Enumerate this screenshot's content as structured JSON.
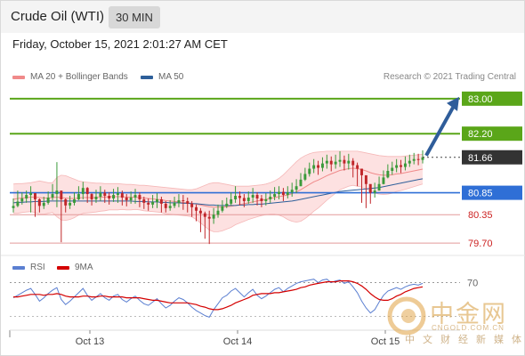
{
  "header": {
    "title": "Crude Oil (WTI)",
    "interval": "30 MIN"
  },
  "timestamp": "Friday, October 15, 2021 2:01:27 AM CET",
  "legend": {
    "ma20_label": "MA 20 + Bollinger Bands",
    "ma20_color": "#f08a8a",
    "ma50_label": "MA 50",
    "ma50_color": "#2e5f9a",
    "credit": "Research © 2021 Trading Central"
  },
  "rsi_legend": {
    "rsi_label": "RSI",
    "rsi_color": "#5b7fd1",
    "ma_label": "9MA",
    "ma_color": "#d40000"
  },
  "watermark": {
    "cn": "中金网",
    "en": "CNGOLD.COM.CN",
    "sub": "中文财经新媒体"
  },
  "chart_data": [
    {
      "type": "candlestick",
      "x_tick_labels": [
        "Oct 13",
        "Oct 14",
        "Oct 15"
      ],
      "ylim": [
        79.5,
        83.2
      ],
      "current_price": 81.66,
      "current_price_color": "#333333",
      "levels": [
        {
          "value": 83.0,
          "label": "83.00",
          "kind": "target",
          "color": "#5aa619"
        },
        {
          "value": 82.2,
          "label": "82.20",
          "kind": "resistance",
          "color": "#5aa619"
        },
        {
          "value": 80.85,
          "label": "80.85",
          "kind": "pivot",
          "color": "#2f6fd6"
        },
        {
          "value": 80.35,
          "label": "80.35",
          "kind": "support",
          "color": "#cc2222"
        },
        {
          "value": 79.7,
          "label": "79.70",
          "kind": "support",
          "color": "#cc2222"
        }
      ],
      "candle_up_color": "#3a9a3a",
      "candle_down_color": "#c0262a",
      "close": [
        80.55,
        80.65,
        80.72,
        80.8,
        80.84,
        80.7,
        80.55,
        80.62,
        80.74,
        80.82,
        80.9,
        80.7,
        80.56,
        80.62,
        80.7,
        80.82,
        80.96,
        80.82,
        80.7,
        80.76,
        80.85,
        80.78,
        80.72,
        80.8,
        80.84,
        80.74,
        80.68,
        80.74,
        80.8,
        80.7,
        80.62,
        80.58,
        80.64,
        80.7,
        80.6,
        80.5,
        80.55,
        80.62,
        80.68,
        80.66,
        80.6,
        80.52,
        80.44,
        80.38,
        80.3,
        80.26,
        80.35,
        80.44,
        80.54,
        80.6,
        80.7,
        80.78,
        80.73,
        80.66,
        80.74,
        80.8,
        80.72,
        80.66,
        80.7,
        80.76,
        80.82,
        80.87,
        80.8,
        80.86,
        80.92,
        81.0,
        81.15,
        81.28,
        81.4,
        81.48,
        81.42,
        81.52,
        81.58,
        81.5,
        81.56,
        81.6,
        81.52,
        81.58,
        81.48,
        81.4,
        81.25,
        81.05,
        80.85,
        80.9,
        81.05,
        81.2,
        81.35,
        81.42,
        81.48,
        81.44,
        81.52,
        81.58,
        81.62,
        81.6,
        81.66
      ],
      "low": [
        80.4,
        80.52,
        80.58,
        80.62,
        80.4,
        80.3,
        80.4,
        80.48,
        80.58,
        80.68,
        80.52,
        79.72,
        80.4,
        80.48,
        80.56,
        80.68,
        80.7,
        80.62,
        80.56,
        80.62,
        80.66,
        80.62,
        80.58,
        80.64,
        80.62,
        80.56,
        80.54,
        80.6,
        80.6,
        80.52,
        80.48,
        80.44,
        80.5,
        80.5,
        80.4,
        80.4,
        80.44,
        80.5,
        80.52,
        80.46,
        80.4,
        80.3,
        80.2,
        79.95,
        79.8,
        79.68,
        80.14,
        80.28,
        80.4,
        80.5,
        80.56,
        80.62,
        80.56,
        80.52,
        80.6,
        80.62,
        80.56,
        80.52,
        80.56,
        80.62,
        80.68,
        80.7,
        80.66,
        80.72,
        80.76,
        80.84,
        81.0,
        81.12,
        81.22,
        81.3,
        81.26,
        81.34,
        81.4,
        81.34,
        81.4,
        81.44,
        81.36,
        81.38,
        81.2,
        81.0,
        80.62,
        80.5,
        80.6,
        80.74,
        80.9,
        81.04,
        81.18,
        81.26,
        81.32,
        81.3,
        81.36,
        81.44,
        81.5,
        81.48,
        81.52
      ],
      "high": [
        80.72,
        80.9,
        80.86,
        80.9,
        81.0,
        80.84,
        80.72,
        80.76,
        80.88,
        81.05,
        81.55,
        80.86,
        80.72,
        80.78,
        80.86,
        81.0,
        81.1,
        80.98,
        80.84,
        80.92,
        81.0,
        80.92,
        80.86,
        80.94,
        80.98,
        80.9,
        80.82,
        80.88,
        80.94,
        80.86,
        80.76,
        80.72,
        80.8,
        80.84,
        80.76,
        80.66,
        80.68,
        80.76,
        80.82,
        80.8,
        80.74,
        80.66,
        80.58,
        80.5,
        80.42,
        80.44,
        80.5,
        80.58,
        80.68,
        80.74,
        80.86,
        81.0,
        80.88,
        80.82,
        80.88,
        80.96,
        80.86,
        80.8,
        80.84,
        80.9,
        80.98,
        81.0,
        80.96,
        81.0,
        81.08,
        81.16,
        81.3,
        81.42,
        81.54,
        81.62,
        81.58,
        81.66,
        81.72,
        81.68,
        81.72,
        81.8,
        81.7,
        81.74,
        81.64,
        81.54,
        81.4,
        81.2,
        81.0,
        81.08,
        81.22,
        81.36,
        81.5,
        81.56,
        81.62,
        81.6,
        81.68,
        81.72,
        81.76,
        81.74,
        81.82
      ],
      "ma20": [
        80.7,
        80.72,
        80.73,
        80.74,
        80.75,
        80.75,
        80.74,
        80.73,
        80.73,
        80.74,
        80.75,
        80.74,
        80.73,
        80.72,
        80.72,
        80.73,
        80.74,
        80.74,
        80.74,
        80.74,
        80.75,
        80.75,
        80.76,
        80.76,
        80.76,
        80.76,
        80.75,
        80.75,
        80.75,
        80.74,
        80.73,
        80.72,
        80.71,
        80.7,
        80.69,
        80.67,
        80.66,
        80.65,
        80.64,
        80.63,
        80.62,
        80.61,
        80.59,
        80.57,
        80.55,
        80.53,
        80.52,
        80.52,
        80.52,
        80.53,
        80.54,
        80.56,
        80.58,
        80.6,
        80.62,
        80.64,
        80.66,
        80.68,
        80.7,
        80.72,
        80.74,
        80.76,
        80.78,
        80.8,
        80.83,
        80.87,
        80.92,
        80.98,
        81.04,
        81.1,
        81.14,
        81.19,
        81.24,
        81.28,
        81.32,
        81.36,
        81.38,
        81.4,
        81.41,
        81.4,
        81.38,
        81.35,
        81.31,
        81.28,
        81.26,
        81.25,
        81.25,
        81.26,
        81.28,
        81.29,
        81.31,
        81.33,
        81.35,
        81.37,
        81.39
      ],
      "bb_upper": [
        81.05,
        81.06,
        81.06,
        81.07,
        81.08,
        81.1,
        81.12,
        81.1,
        81.08,
        81.08,
        81.2,
        81.25,
        81.24,
        81.2,
        81.16,
        81.12,
        81.1,
        81.09,
        81.08,
        81.07,
        81.07,
        81.06,
        81.06,
        81.06,
        81.06,
        81.05,
        81.04,
        81.04,
        81.03,
        81.02,
        81.02,
        81.01,
        81.0,
        80.99,
        80.98,
        80.97,
        80.96,
        80.95,
        80.94,
        80.93,
        80.92,
        80.92,
        80.94,
        80.98,
        81.02,
        81.06,
        81.08,
        81.08,
        81.06,
        81.04,
        81.02,
        81.0,
        81.0,
        81.0,
        81.0,
        81.01,
        81.02,
        81.03,
        81.05,
        81.08,
        81.12,
        81.18,
        81.26,
        81.36,
        81.46,
        81.56,
        81.64,
        81.7,
        81.74,
        81.77,
        81.78,
        81.79,
        81.8,
        81.8,
        81.8,
        81.8,
        81.8,
        81.8,
        81.8,
        81.8,
        81.78,
        81.76,
        81.74,
        81.72,
        81.7,
        81.69,
        81.68,
        81.68,
        81.68,
        81.68,
        81.69,
        81.7,
        81.71,
        81.72,
        81.73
      ],
      "bb_lower": [
        80.38,
        80.38,
        80.4,
        80.41,
        80.42,
        80.4,
        80.36,
        80.36,
        80.38,
        80.4,
        80.3,
        80.23,
        80.22,
        80.24,
        80.28,
        80.34,
        80.38,
        80.39,
        80.4,
        80.41,
        80.43,
        80.44,
        80.46,
        80.46,
        80.46,
        80.47,
        80.46,
        80.46,
        80.47,
        80.46,
        80.44,
        80.43,
        80.42,
        80.41,
        80.4,
        80.37,
        80.36,
        80.35,
        80.34,
        80.33,
        80.32,
        80.3,
        80.24,
        80.16,
        80.08,
        80.0,
        79.96,
        79.96,
        79.98,
        80.02,
        80.06,
        80.12,
        80.16,
        80.2,
        80.24,
        80.27,
        80.3,
        80.33,
        80.35,
        80.36,
        80.36,
        80.34,
        80.3,
        80.24,
        80.2,
        80.18,
        80.2,
        80.26,
        80.34,
        80.43,
        80.5,
        80.59,
        80.68,
        80.76,
        80.84,
        80.92,
        80.96,
        81.0,
        81.02,
        81.0,
        80.98,
        80.94,
        80.88,
        80.84,
        80.82,
        80.81,
        80.82,
        80.84,
        80.88,
        80.9,
        80.93,
        80.96,
        80.99,
        81.02,
        81.05
      ],
      "ma50": [
        80.62,
        80.63,
        80.63,
        80.64,
        80.64,
        80.65,
        80.65,
        80.65,
        80.66,
        80.66,
        80.66,
        80.66,
        80.66,
        80.66,
        80.66,
        80.66,
        80.66,
        80.66,
        80.66,
        80.66,
        80.66,
        80.66,
        80.66,
        80.66,
        80.66,
        80.66,
        80.66,
        80.66,
        80.65,
        80.65,
        80.65,
        80.64,
        80.64,
        80.64,
        80.63,
        80.63,
        80.62,
        80.62,
        80.62,
        80.61,
        80.61,
        80.6,
        80.6,
        80.59,
        80.58,
        80.57,
        80.57,
        80.56,
        80.56,
        80.56,
        80.56,
        80.56,
        80.57,
        80.57,
        80.58,
        80.58,
        80.59,
        80.59,
        80.6,
        80.61,
        80.62,
        80.63,
        80.64,
        80.65,
        80.66,
        80.68,
        80.7,
        80.72,
        80.74,
        80.76,
        80.78,
        80.8,
        80.82,
        80.84,
        80.86,
        80.88,
        80.89,
        80.9,
        80.91,
        80.92,
        80.93,
        80.94,
        80.95,
        80.96,
        80.97,
        80.99,
        81.01,
        81.03,
        81.05,
        81.07,
        81.09,
        81.11,
        81.13,
        81.15,
        81.17
      ],
      "forecast_target": 83.0
    },
    {
      "type": "line",
      "title": "RSI",
      "ylim": [
        20,
        80
      ],
      "levels": [
        {
          "value": 70,
          "label": "70"
        }
      ],
      "series": [
        {
          "name": "RSI",
          "values": [
            52,
            55,
            58,
            61,
            63,
            56,
            48,
            52,
            57,
            61,
            64,
            50,
            44,
            48,
            53,
            58,
            63,
            55,
            49,
            53,
            57,
            52,
            49,
            54,
            56,
            50,
            47,
            51,
            54,
            49,
            45,
            43,
            47,
            51,
            45,
            40,
            43,
            48,
            52,
            50,
            46,
            41,
            37,
            34,
            31,
            29,
            38,
            45,
            52,
            55,
            60,
            63,
            58,
            53,
            58,
            62,
            55,
            51,
            54,
            58,
            62,
            64,
            59,
            63,
            66,
            69,
            71,
            72,
            73,
            74,
            70,
            73,
            74,
            70,
            72,
            73,
            69,
            71,
            65,
            58,
            48,
            40,
            34,
            38,
            47,
            55,
            60,
            62,
            64,
            62,
            65,
            67,
            68,
            67,
            69
          ]
        },
        {
          "name": "9MA",
          "values": [
            53,
            53,
            54,
            55,
            56,
            56,
            56,
            55,
            56,
            56,
            57,
            56,
            54,
            53,
            53,
            53,
            54,
            54,
            53,
            53,
            54,
            54,
            53,
            53,
            53,
            53,
            52,
            52,
            52,
            52,
            51,
            50,
            49,
            49,
            48,
            47,
            46,
            46,
            46,
            46,
            46,
            45,
            44,
            42,
            41,
            39,
            38,
            38,
            39,
            41,
            43,
            46,
            48,
            50,
            52,
            55,
            56,
            57,
            57,
            57,
            58,
            58,
            59,
            60,
            61,
            62,
            64,
            65,
            67,
            68,
            69,
            70,
            71,
            71,
            71,
            72,
            72,
            72,
            71,
            69,
            66,
            62,
            57,
            53,
            50,
            49,
            49,
            51,
            54,
            56,
            59,
            61,
            63,
            64,
            65
          ]
        }
      ]
    }
  ]
}
